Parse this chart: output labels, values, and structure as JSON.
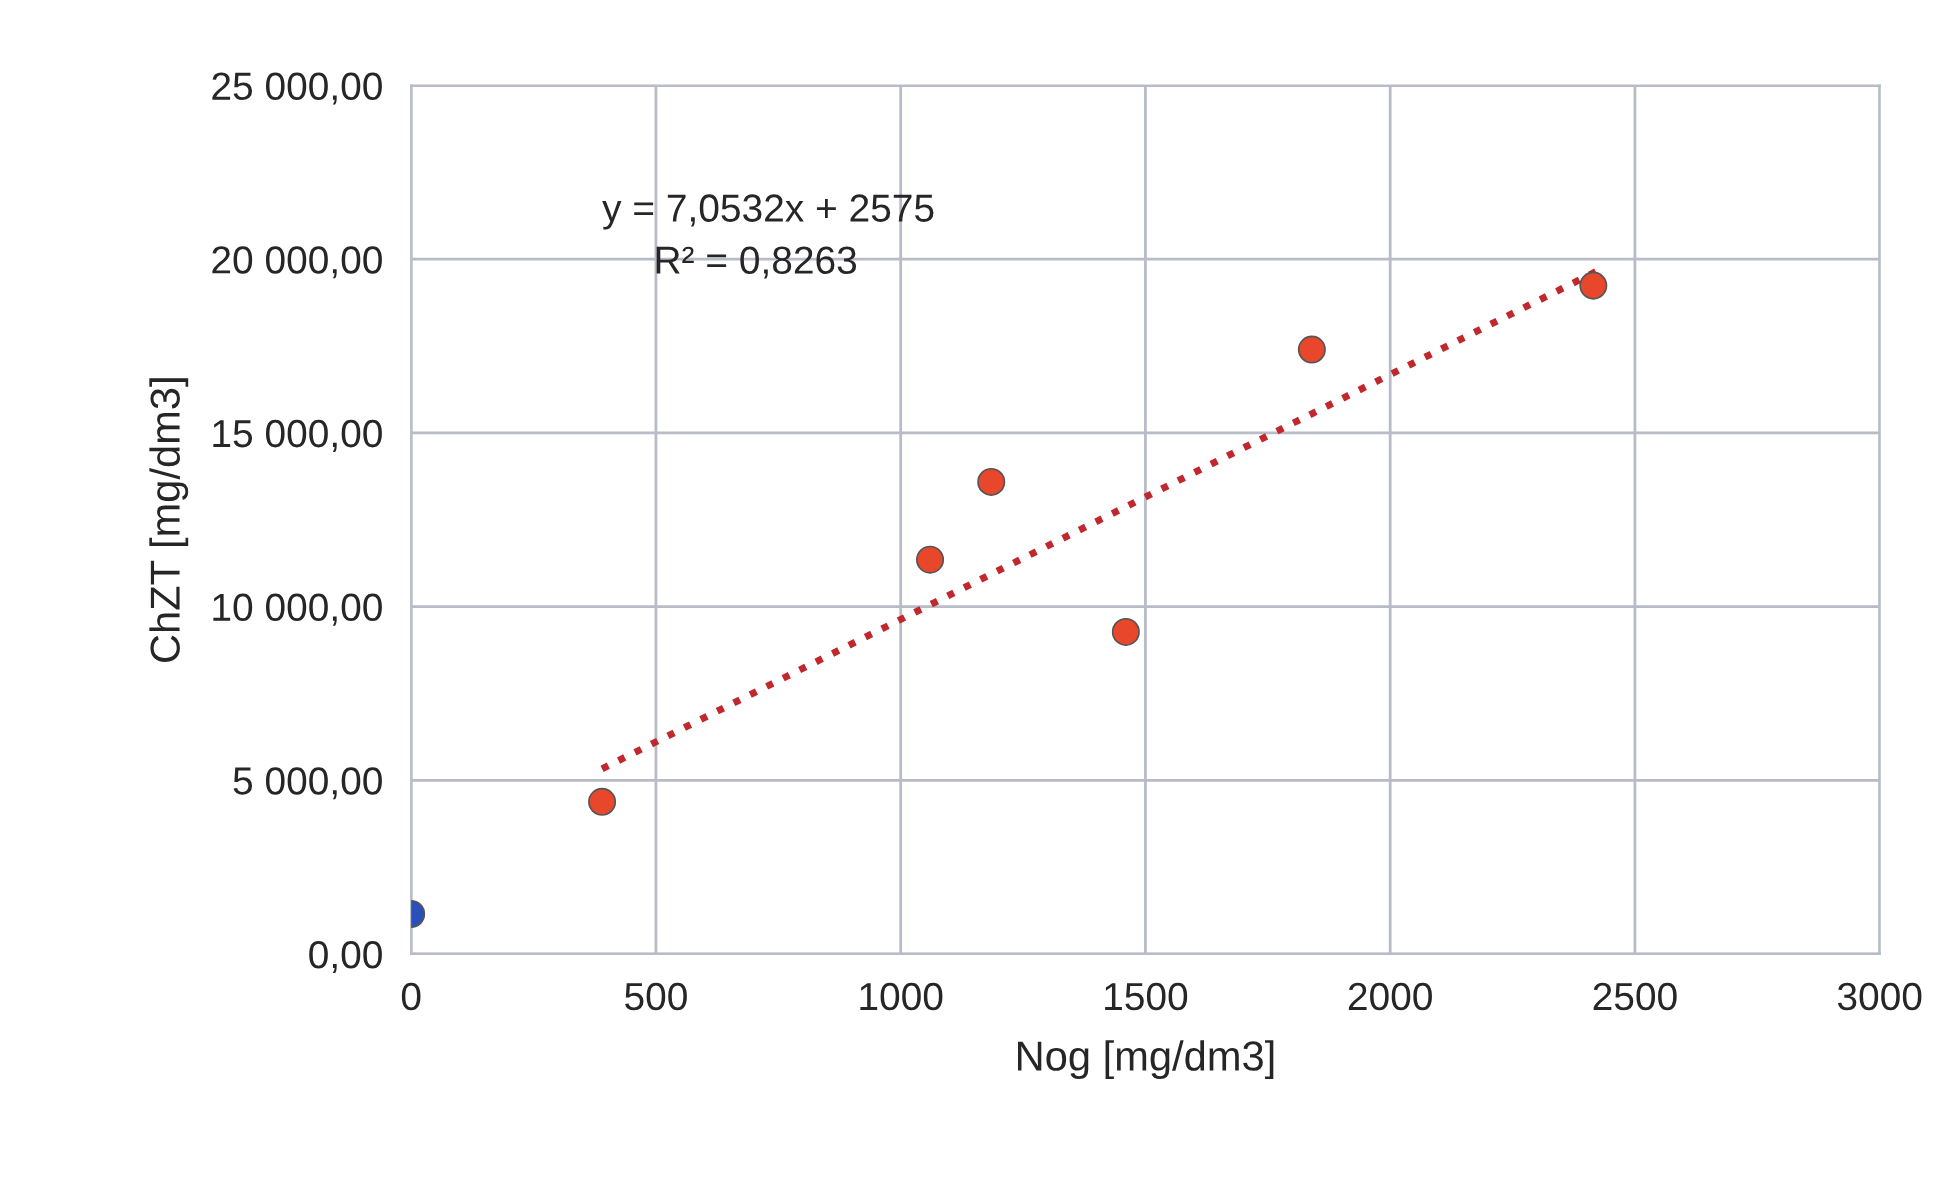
{
  "chart_data": {
    "type": "scatter",
    "xlabel": "Nog [mg/dm3]",
    "ylabel": "ChZT [mg/dm3]",
    "series": [
      {
        "color": "#e8472c",
        "x": [
          390,
          1060,
          1185,
          1460,
          1840,
          2415
        ],
        "values": [
          4380,
          11350,
          13590,
          9270,
          17400,
          19240
        ]
      },
      {
        "color": "#2a4fb8",
        "x": [
          0
        ],
        "values": [
          1150
        ]
      },
      {
        "type": "line",
        "color": "#c0282d",
        "line_style": "dotted",
        "marker": "none",
        "x": [
          390,
          2420
        ],
        "values": [
          5330,
          19640
        ]
      }
    ],
    "annotations": [
      "y = 7,0532x + 2575",
      "R² = 0,8263"
    ],
    "xlim": [
      0,
      3000
    ],
    "xticks": [
      0,
      500,
      1000,
      1500,
      2000,
      2500,
      3000
    ],
    "ylim": [
      0,
      25000
    ],
    "yticks": [
      {
        "value": 0,
        "label": "0,00"
      },
      {
        "value": 5000,
        "label": "5 000,00"
      },
      {
        "value": 10000,
        "label": "10 000,00"
      },
      {
        "value": 15000,
        "label": "15 000,00"
      },
      {
        "value": 20000,
        "label": "20 000,00"
      },
      {
        "value": 25000,
        "label": "25 000,00"
      }
    ],
    "grid": true,
    "marker": "circle",
    "legend": false
  }
}
